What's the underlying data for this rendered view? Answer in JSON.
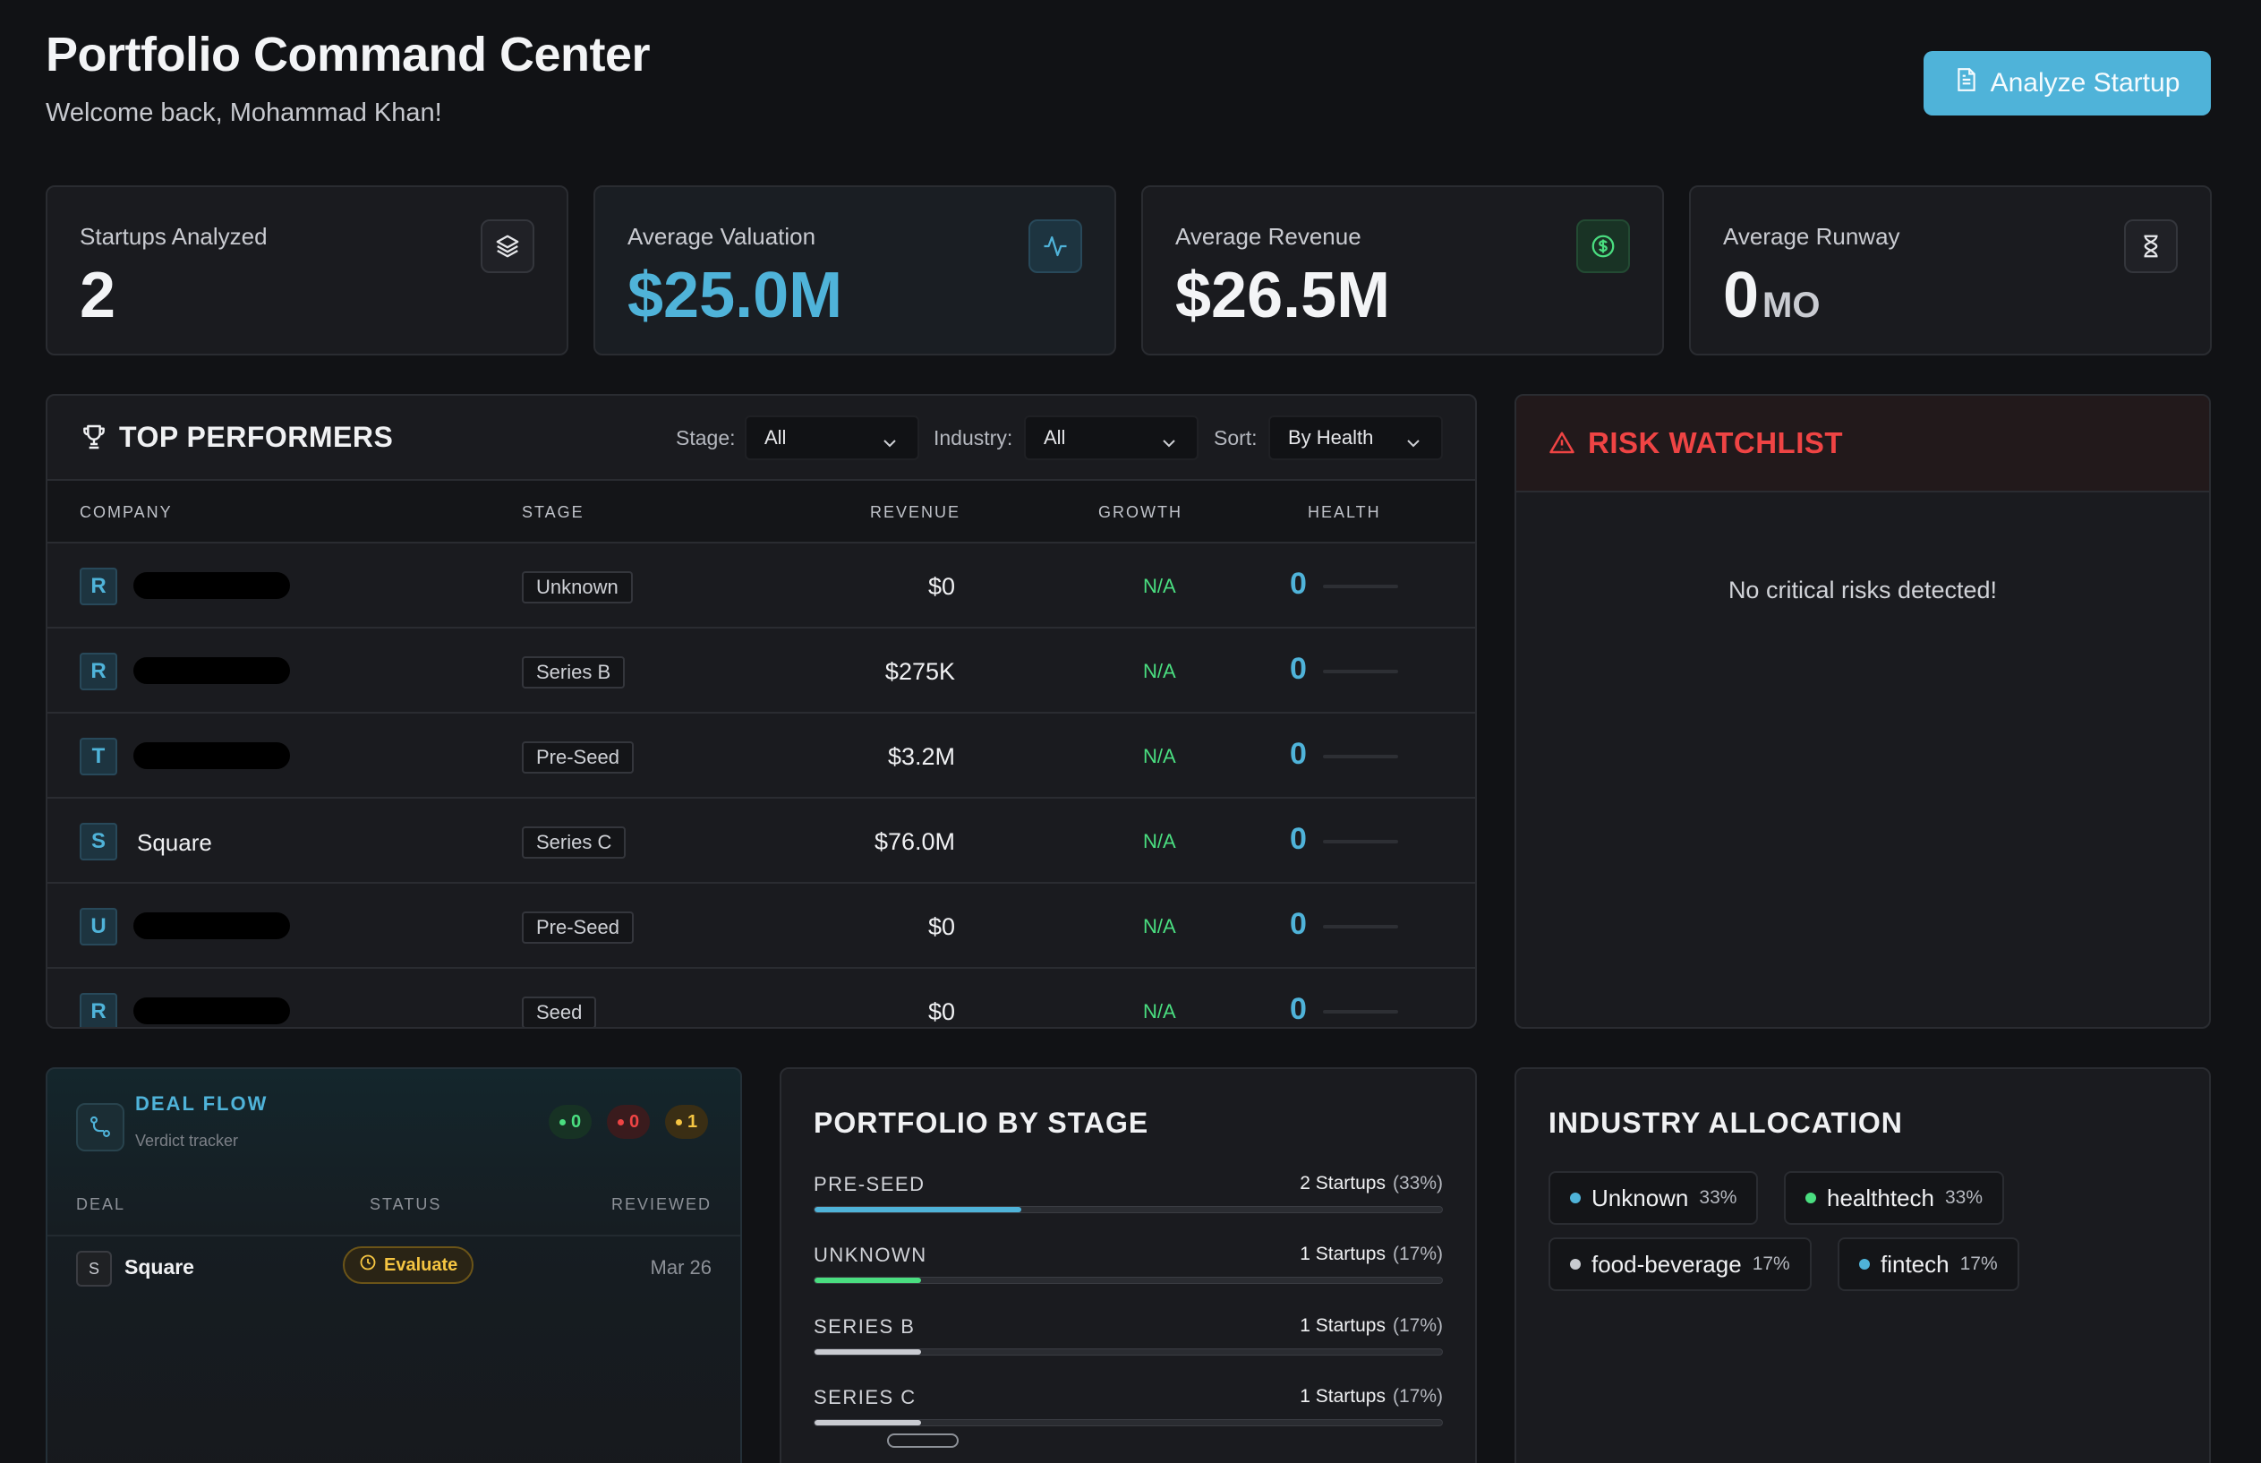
{
  "header": {
    "title": "Portfolio Command Center",
    "subtitle": "Welcome back, Mohammad Khan!",
    "analyze_button": "Analyze Startup",
    "analyze_icon": "document-icon"
  },
  "kpis": [
    {
      "label": "Startups Analyzed",
      "value": "2",
      "unit": "",
      "icon": "layers-icon"
    },
    {
      "label": "Average Valuation",
      "value": "$25.0M",
      "unit": "",
      "icon": "activity-icon"
    },
    {
      "label": "Average Revenue",
      "value": "$26.5M",
      "unit": "",
      "icon": "dollar-circle-icon"
    },
    {
      "label": "Average Runway",
      "value": "0",
      "unit": "MO",
      "icon": "hourglass-icon"
    }
  ],
  "top_performers": {
    "title": "TOP PERFORMERS",
    "filters": {
      "stage_label": "Stage:",
      "stage_value": "All",
      "industry_label": "Industry:",
      "industry_value": "All",
      "sort_label": "Sort:",
      "sort_value": "By Health"
    },
    "columns": [
      "COMPANY",
      "STAGE",
      "REVENUE",
      "GROWTH",
      "HEALTH"
    ],
    "rows": [
      {
        "initial": "R",
        "name": "",
        "redacted": true,
        "stage": "Unknown",
        "revenue": "$0",
        "growth": "N/A",
        "health": "0"
      },
      {
        "initial": "R",
        "name": "",
        "redacted": true,
        "stage": "Series B",
        "revenue": "$275K",
        "growth": "N/A",
        "health": "0"
      },
      {
        "initial": "T",
        "name": "",
        "redacted": true,
        "stage": "Pre-Seed",
        "revenue": "$3.2M",
        "growth": "N/A",
        "health": "0"
      },
      {
        "initial": "S",
        "name": "Square",
        "redacted": false,
        "stage": "Series C",
        "revenue": "$76.0M",
        "growth": "N/A",
        "health": "0"
      },
      {
        "initial": "U",
        "name": "",
        "redacted": true,
        "stage": "Pre-Seed",
        "revenue": "$0",
        "growth": "N/A",
        "health": "0"
      },
      {
        "initial": "R",
        "name": "",
        "redacted": true,
        "stage": "Seed",
        "revenue": "$0",
        "growth": "N/A",
        "health": "0"
      }
    ]
  },
  "risk_watchlist": {
    "title": "RISK WATCHLIST",
    "empty_message": "No critical risks detected!"
  },
  "deal_flow": {
    "title": "DEAL FLOW",
    "subtitle": "Verdict tracker",
    "counts": [
      {
        "value": "0",
        "color": "#4ade80"
      },
      {
        "value": "0",
        "color": "#ef4444"
      },
      {
        "value": "1",
        "color": "#f5c542"
      }
    ],
    "columns": [
      "DEAL",
      "STATUS",
      "REVIEWED"
    ],
    "rows": [
      {
        "initial": "S",
        "name": "Square",
        "status": "Evaluate",
        "reviewed": "Mar 26"
      }
    ]
  },
  "portfolio_by_stage": {
    "title": "PORTFOLIO BY STAGE",
    "stages": [
      {
        "label": "PRE-SEED",
        "count": "2 Startups",
        "pct": "(33%)",
        "fraction": 0.33,
        "color": "#4fb3d9"
      },
      {
        "label": "UNKNOWN",
        "count": "1 Startups",
        "pct": "(17%)",
        "fraction": 0.17,
        "color": "#4ade80"
      },
      {
        "label": "SERIES B",
        "count": "1 Startups",
        "pct": "(17%)",
        "fraction": 0.17,
        "color": "#c9cbd1"
      },
      {
        "label": "SERIES C",
        "count": "1 Startups",
        "pct": "(17%)",
        "fraction": 0.17,
        "color": "#c9cbd1"
      }
    ]
  },
  "industry_allocation": {
    "title": "INDUSTRY ALLOCATION",
    "items": [
      {
        "name": "Unknown",
        "pct": "33%",
        "color": "#4fb3d9"
      },
      {
        "name": "healthtech",
        "pct": "33%",
        "color": "#4ade80"
      },
      {
        "name": "food-beverage",
        "pct": "17%",
        "color": "#c9cbd1"
      },
      {
        "name": "fintech",
        "pct": "17%",
        "color": "#4fb3d9"
      }
    ]
  }
}
